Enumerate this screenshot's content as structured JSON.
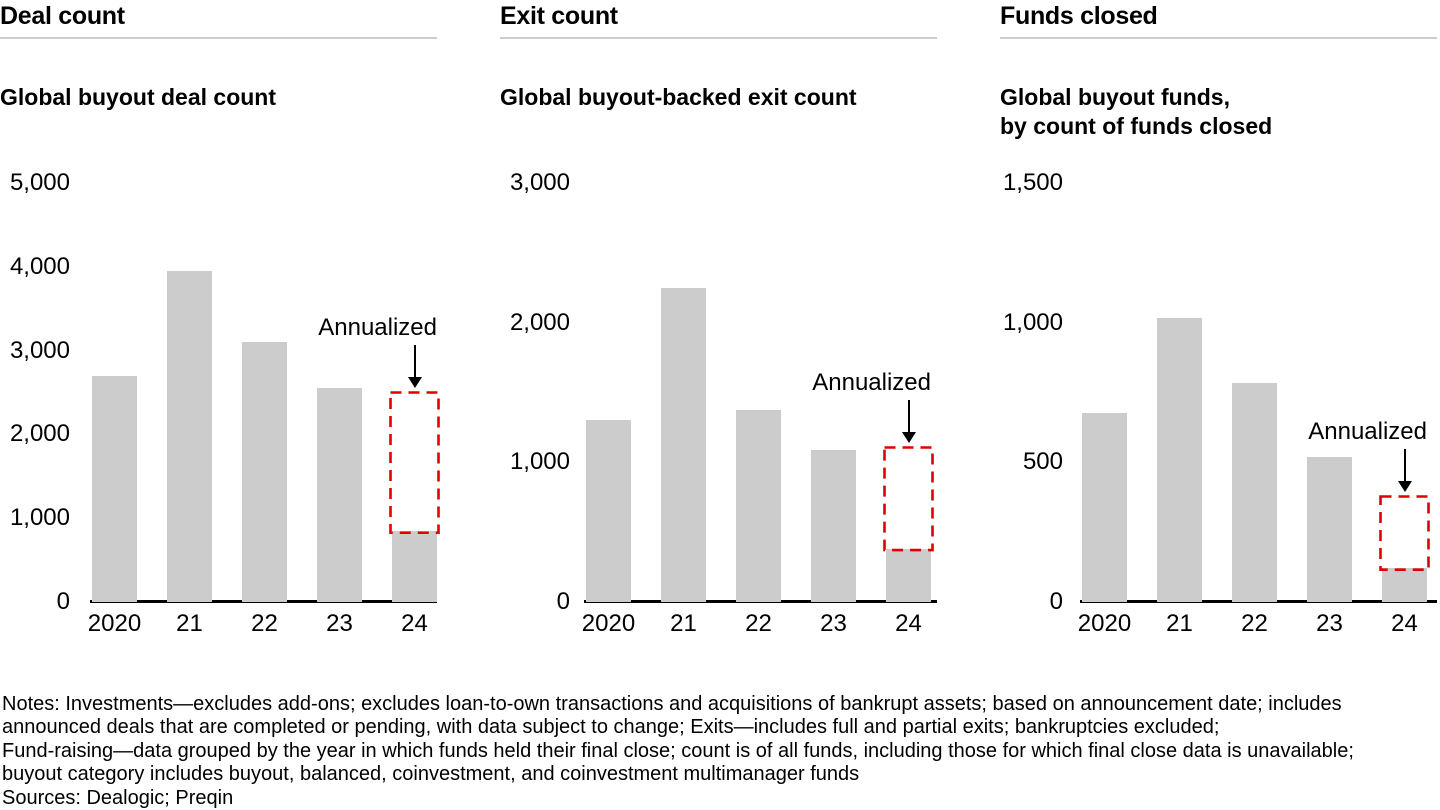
{
  "colors": {
    "bar": "#cccccc",
    "axis": "#000000",
    "annualized_box": "#e00000",
    "header_rule": "#cccccc",
    "text": "#000000"
  },
  "notes": {
    "lines": [
      "Notes: Investments—excludes add-ons; excludes loan-to-own transactions and acquisitions of bankrupt assets; based on announcement date; includes",
      "announced deals that are completed or pending, with data subject to change; Exits—includes full and partial exits; bankruptcies excluded;",
      "Fund-raising—data grouped by the year in which funds held their final close; count is of all funds, including those for which final close data is unavailable;",
      "buyout category includes buyout, balanced, coinvestment, and coinvestment multimanager funds"
    ],
    "sources": "Sources: Dealogic; Preqin"
  },
  "chart_data": [
    {
      "type": "bar",
      "header": "Deal count",
      "title": "Global buyout deal count",
      "categories": [
        "2020",
        "21",
        "22",
        "23",
        "24"
      ],
      "values": [
        2700,
        3950,
        3100,
        2550,
        850
      ],
      "annualized": {
        "label": "Annualized",
        "category": "24",
        "value": 2500
      },
      "xlabel": "",
      "ylabel": "",
      "ylim": [
        0,
        5000
      ],
      "yticks": [
        0,
        1000,
        2000,
        3000,
        4000,
        5000
      ],
      "ytick_labels": [
        "0",
        "1,000",
        "2,000",
        "3,000",
        "4,000",
        "5,000"
      ],
      "grid": false,
      "legend": "none"
    },
    {
      "type": "bar",
      "header": "Exit count",
      "title": "Global buyout-backed exit count",
      "categories": [
        "2020",
        "21",
        "22",
        "23",
        "24"
      ],
      "values": [
        1300,
        2250,
        1375,
        1090,
        380
      ],
      "annualized": {
        "label": "Annualized",
        "category": "24",
        "value": 1100
      },
      "xlabel": "",
      "ylabel": "",
      "ylim": [
        0,
        3000
      ],
      "yticks": [
        0,
        1000,
        2000,
        3000
      ],
      "ytick_labels": [
        "0",
        "1,000",
        "2,000",
        "3,000"
      ],
      "grid": false,
      "legend": "none"
    },
    {
      "type": "bar",
      "header": "Funds closed",
      "title": "Global buyout funds,\nby count of funds closed",
      "categories": [
        "2020",
        "21",
        "22",
        "23",
        "24"
      ],
      "values": [
        675,
        1015,
        785,
        520,
        120
      ],
      "annualized": {
        "label": "Annualized",
        "category": "24",
        "value": 375
      },
      "xlabel": "",
      "ylabel": "",
      "ylim": [
        0,
        1500
      ],
      "yticks": [
        0,
        500,
        1000,
        1500
      ],
      "ytick_labels": [
        "0",
        "500",
        "1,000",
        "1,500"
      ],
      "grid": false,
      "legend": "none"
    }
  ]
}
